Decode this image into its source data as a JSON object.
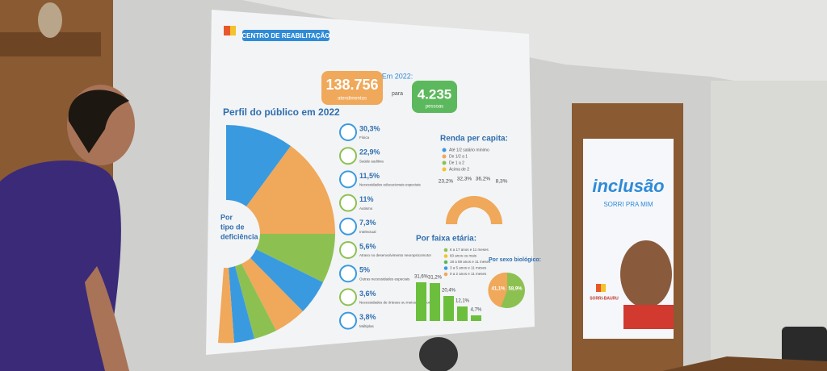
{
  "slide": {
    "header": "CENTRO DE REABILITAÇÃO",
    "summary": {
      "intro": "Em 2022:",
      "attendances": "138.756",
      "attendances_label": "atendimentos",
      "connector": "para",
      "people": "4.235",
      "people_label": "pessoas"
    },
    "profile": {
      "title": "Perfil do público em 2022",
      "donut_label": [
        "Por",
        "tipo de",
        "deficiência"
      ],
      "items": [
        {
          "percent": "30,3%",
          "label": "Física"
        },
        {
          "percent": "22,9%",
          "label": "Saúde auditiva"
        },
        {
          "percent": "11,5%",
          "label": "Necessidades educacionais especiais"
        },
        {
          "percent": "11%",
          "label": "Autismo"
        },
        {
          "percent": "7,3%",
          "label": "Intelectual"
        },
        {
          "percent": "5,6%",
          "label": "Atraso no desenvolvimento neuropsicomotor"
        },
        {
          "percent": "5%",
          "label": "Outras necessidades especiais"
        },
        {
          "percent": "3,6%",
          "label": "Necessidades de órteses ou meios de locomoção"
        },
        {
          "percent": "3,8%",
          "label": "Múltiplas"
        }
      ]
    },
    "income": {
      "title": "Renda per capita:",
      "legend": [
        "Até 1/2 salário mínimo",
        "De 1/2 a 1",
        "De 1 a 2",
        "Acima de 2"
      ],
      "values": [
        "23,2%",
        "32,3%",
        "36,2%",
        "8,3%"
      ]
    },
    "age": {
      "title": "Por faixa etária:",
      "legend": [
        "6 a 17 anos e 11 meses",
        "60 anos ou mais",
        "18 a 59 anos e 11 meses",
        "3 a 5 anos e 11 meses",
        "0 a 2 anos e 11 meses"
      ],
      "values": [
        "31,6%",
        "31,2%",
        "20,4%",
        "12,1%",
        "4,7%"
      ]
    },
    "sex": {
      "title": "Por sexo biológico:",
      "values": [
        "41,1%",
        "58,9%"
      ]
    }
  },
  "banner": {
    "title": "inclusão",
    "subtitle": "SORRI PRA MIM",
    "logo": "SORRI-BAURU"
  }
}
